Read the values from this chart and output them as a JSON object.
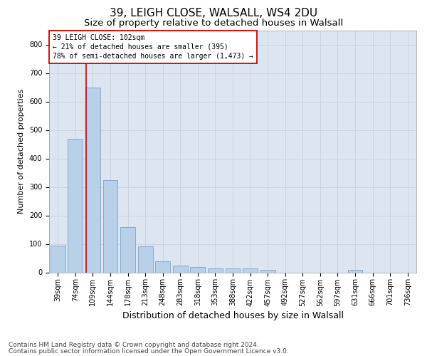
{
  "title1": "39, LEIGH CLOSE, WALSALL, WS4 2DU",
  "title2": "Size of property relative to detached houses in Walsall",
  "xlabel": "Distribution of detached houses by size in Walsall",
  "ylabel": "Number of detached properties",
  "categories": [
    "39sqm",
    "74sqm",
    "109sqm",
    "144sqm",
    "178sqm",
    "213sqm",
    "248sqm",
    "283sqm",
    "318sqm",
    "353sqm",
    "388sqm",
    "422sqm",
    "457sqm",
    "492sqm",
    "527sqm",
    "562sqm",
    "597sqm",
    "631sqm",
    "666sqm",
    "701sqm",
    "736sqm"
  ],
  "values": [
    95,
    470,
    648,
    325,
    158,
    92,
    40,
    25,
    18,
    15,
    14,
    13,
    10,
    0,
    0,
    0,
    0,
    8,
    0,
    0,
    0
  ],
  "bar_color": "#b8d0e8",
  "bar_edge_color": "#6699cc",
  "grid_color": "#c8d0e0",
  "bg_color": "#dde6f0",
  "vline_color": "#cc0000",
  "annotation_text": "39 LEIGH CLOSE: 102sqm\n← 21% of detached houses are smaller (395)\n78% of semi-detached houses are larger (1,473) →",
  "annotation_box_color": "#cc0000",
  "footer1": "Contains HM Land Registry data © Crown copyright and database right 2024.",
  "footer2": "Contains public sector information licensed under the Open Government Licence v3.0.",
  "ylim": [
    0,
    850
  ],
  "yticks": [
    0,
    100,
    200,
    300,
    400,
    500,
    600,
    700,
    800
  ],
  "title1_fontsize": 11,
  "title2_fontsize": 9.5,
  "xlabel_fontsize": 9,
  "ylabel_fontsize": 8,
  "tick_fontsize": 7,
  "annotation_fontsize": 7,
  "footer_fontsize": 6.5
}
